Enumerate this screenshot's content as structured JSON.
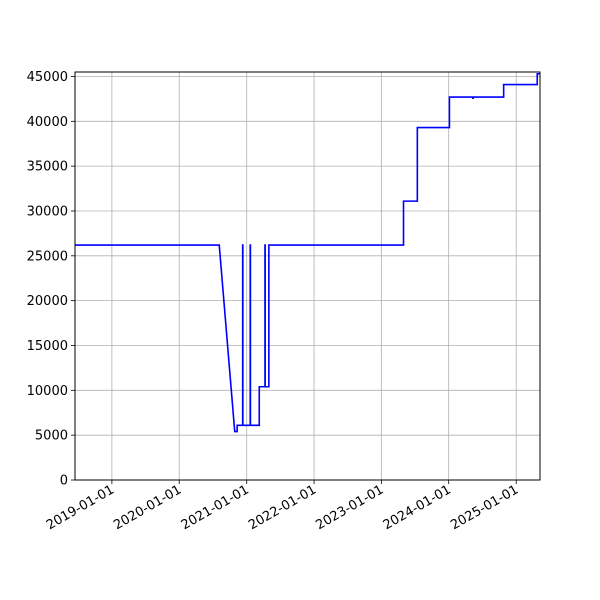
{
  "chart_data": {
    "type": "line",
    "title": "",
    "xlabel": "",
    "ylabel": "",
    "xaxis_type": "date",
    "xlim": [
      "2018-06-15",
      "2025-05-10"
    ],
    "ylim": [
      0,
      45500
    ],
    "grid": true,
    "line_color": "#0000ff",
    "x_ticks": [
      "2019-01-01",
      "2020-01-01",
      "2021-01-01",
      "2022-01-01",
      "2023-01-01",
      "2024-01-01",
      "2025-01-01"
    ],
    "y_ticks": [
      0,
      5000,
      10000,
      15000,
      20000,
      25000,
      30000,
      35000,
      40000,
      45000
    ],
    "series": [
      {
        "x": [
          "2018-06-15",
          "2020-08-05",
          "2020-10-28",
          "2020-11-10",
          "2020-11-10",
          "2020-12-10",
          "2020-12-10",
          "2020-12-11",
          "2020-12-11",
          "2021-01-20",
          "2021-01-20",
          "2021-01-21",
          "2021-01-21",
          "2021-03-10",
          "2021-03-10",
          "2021-04-10",
          "2021-04-10",
          "2021-04-11",
          "2021-04-11",
          "2021-05-01",
          "2021-05-01",
          "2023-05-01",
          "2023-05-01",
          "2023-07-15",
          "2023-07-15",
          "2024-01-05",
          "2024-01-05",
          "2024-05-10",
          "2024-05-12",
          "2024-05-14",
          "2024-10-25",
          "2024-10-25",
          "2025-04-25",
          "2025-04-25",
          "2025-05-10"
        ],
        "values": [
          26200,
          26200,
          5400,
          5400,
          6100,
          6100,
          26200,
          26200,
          6100,
          6100,
          26200,
          26200,
          6100,
          6100,
          10400,
          10400,
          26200,
          26200,
          10400,
          10400,
          26200,
          26200,
          31100,
          31100,
          39300,
          39300,
          42700,
          42700,
          42500,
          42700,
          42700,
          44100,
          44100,
          45300,
          45300
        ]
      }
    ]
  }
}
